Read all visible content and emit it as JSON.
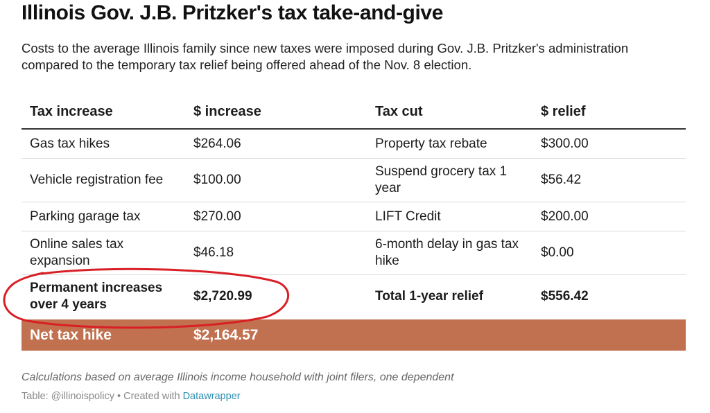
{
  "title": "Illinois Gov. J.B. Pritzker's tax take-and-give",
  "subtitle": "Costs to the average Illinois family since new taxes were imposed during Gov. J.B. Pritzker's administration compared to the temporary tax relief being offered ahead of the Nov. 8 election.",
  "colors": {
    "net_row_bg": "#c1714f",
    "annotation_oval": "#d81f26",
    "credit_link": "#2a8fb3"
  },
  "chart_data": {
    "type": "table",
    "columns": [
      "Tax increase",
      "$ increase",
      "Tax cut",
      "$ relief"
    ],
    "rows": [
      [
        "Gas tax hikes",
        "$264.06",
        "Property tax rebate",
        "$300.00"
      ],
      [
        "Vehicle registration fee",
        "$100.00",
        "Suspend grocery tax 1 year",
        "$56.42"
      ],
      [
        "Parking garage tax",
        "$270.00",
        "LIFT Credit",
        "$200.00"
      ],
      [
        "Online sales tax expansion",
        "$46.18",
        "6-month delay in gas tax hike",
        "$0.00"
      ]
    ],
    "totals": [
      "Permanent increases over 4 years",
      "$2,720.99",
      "Total 1-year relief",
      "$556.42"
    ],
    "net": [
      "Net tax hike",
      "$2,164.57"
    ],
    "annotation": "oval around Permanent increases over 4 years $2,720.99"
  },
  "footer": {
    "note": "Calculations based on average Illinois income household with joint filers, one dependent",
    "credit_prefix": "Table: @illinoispolicy • Created with ",
    "credit_link": "Datawrapper"
  }
}
